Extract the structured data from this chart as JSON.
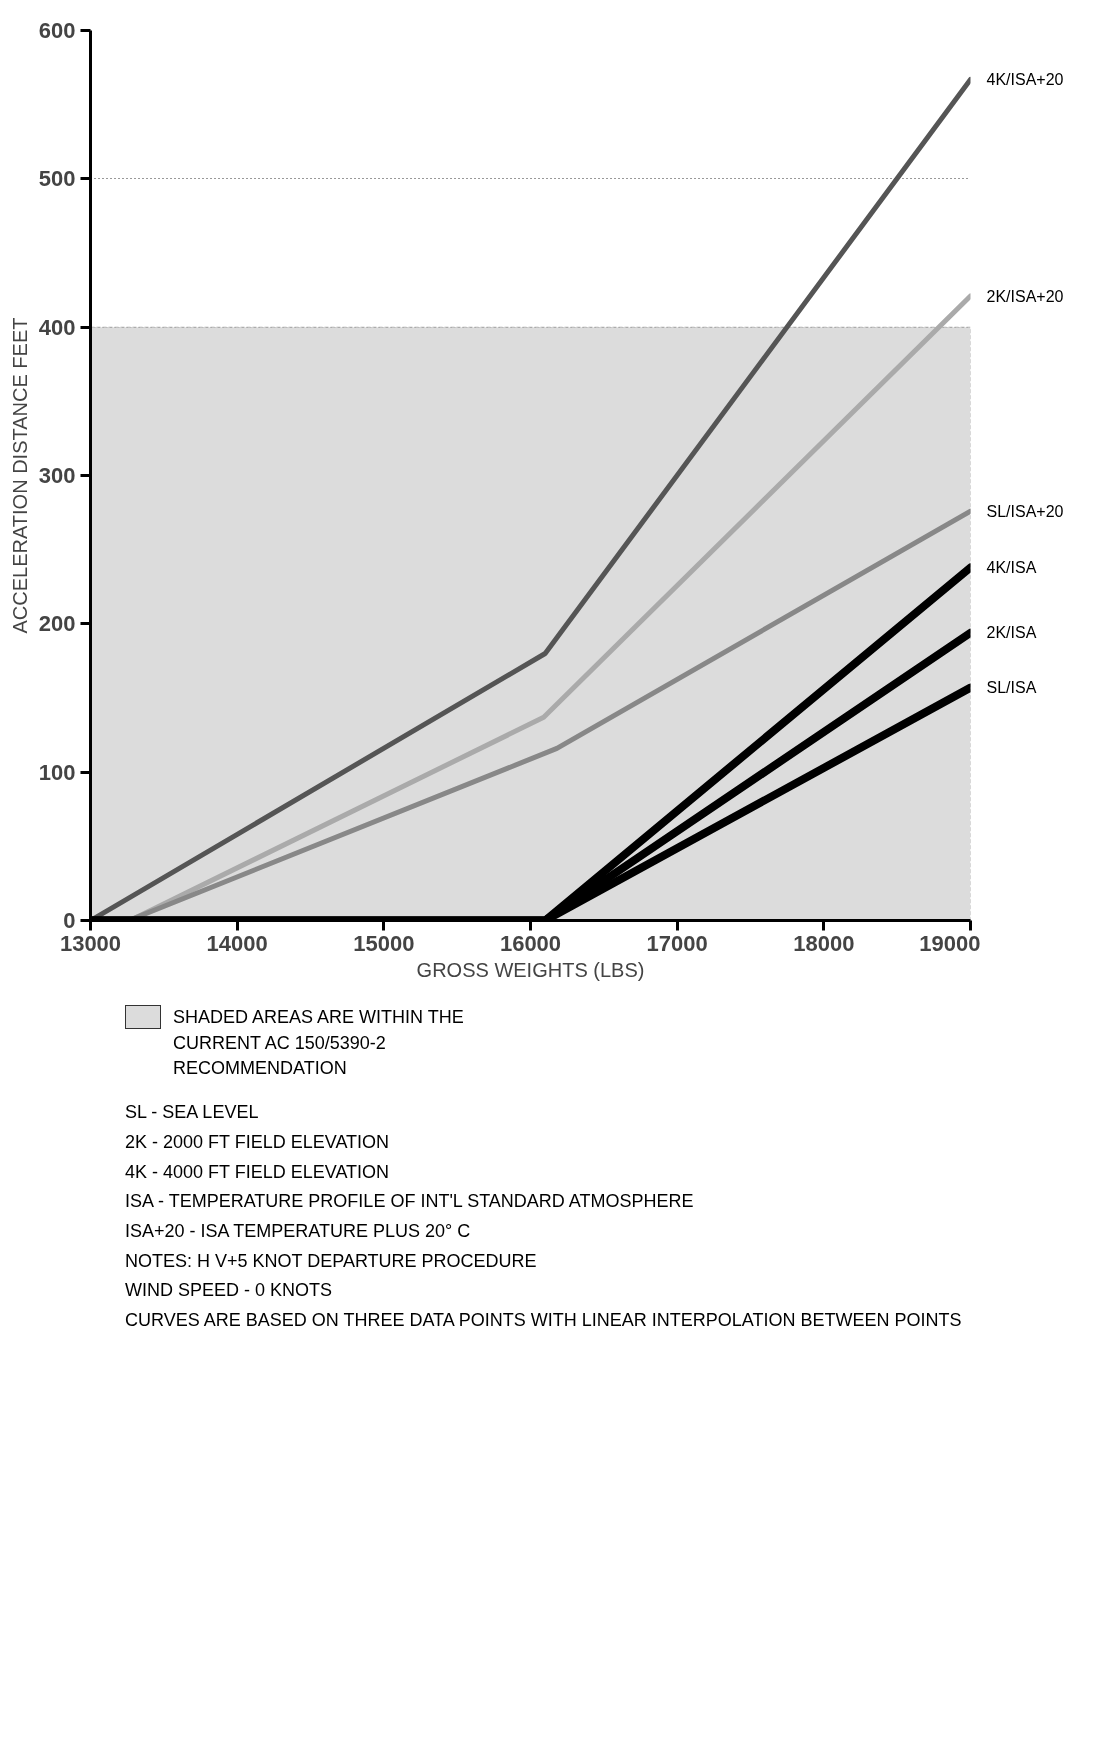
{
  "chart_data": {
    "type": "line",
    "xlabel": "GROSS WEIGHTS (LBS)",
    "ylabel": "ACCELERATION DISTANCE FEET",
    "x": [
      13000,
      16100,
      19000
    ],
    "series": [
      {
        "name": "4K/ISA+20",
        "color": "#555555",
        "values": [
          0,
          180,
          567
        ]
      },
      {
        "name": "2K/ISA+20",
        "color": "#aaaaaa",
        "x": [
          13270,
          16090,
          19000
        ],
        "values": [
          0,
          137,
          421
        ]
      },
      {
        "name": "SL/ISA+20",
        "color": "#888888",
        "x": [
          13260,
          16180,
          19000
        ],
        "values": [
          0,
          116,
          276
        ]
      },
      {
        "name": "4K/ISA",
        "color": "#000000",
        "values": [
          0,
          0,
          238
        ]
      },
      {
        "name": "2K/ISA",
        "color": "#000000",
        "values": [
          0,
          0,
          194
        ]
      },
      {
        "name": "SL/ISA",
        "color": "#000000",
        "values": [
          0,
          0,
          157
        ]
      }
    ],
    "xlim": [
      13000,
      19000
    ],
    "xticks": [
      13000,
      14000,
      15000,
      16000,
      17000,
      18000,
      19000
    ],
    "ylim": [
      0,
      600
    ],
    "yticks": [
      0,
      100,
      200,
      300,
      400,
      500,
      600
    ],
    "bands": [
      {
        "axis": "y",
        "from": 0,
        "to": 400,
        "label": "SHADED AREAS ARE WITHIN THE CURRENT AC 150/5390-2 RECOMMENDATION",
        "color": "#dcdcdc"
      }
    ],
    "grid": "y",
    "legend": "bottom",
    "marker": "none",
    "line_style": "solid",
    "annotations": [
      "SL - SEA LEVEL",
      "2K - 2000 FT FIELD ELEVATION",
      "4K - 4000 FT FIELD ELEVATION",
      "ISA - TEMPERATURE PROFILE OF INT'L STANDARD ATMOSPHERE",
      "ISA+20 - ISA TEMPERATURE PLUS 20° C",
      "NOTES: H V+5 KNOT DEPARTURE PROCEDURE",
      "WIND SPEED - 0 KNOTS",
      "CURVES ARE BASED ON THREE DATA POINTS WITH LINEAR INTERPOLATION BETWEEN POINTS"
    ]
  }
}
